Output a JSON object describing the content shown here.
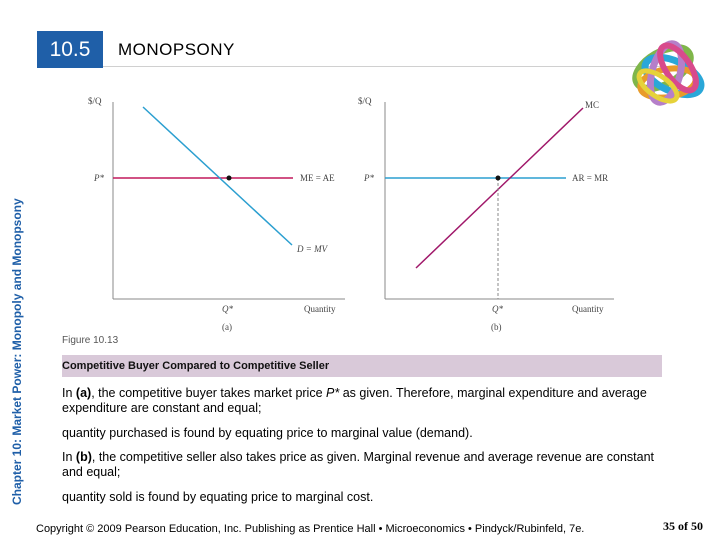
{
  "header": {
    "section_number": "10.5",
    "section_title": "MONOPSONY",
    "chapter_label": "Chapter 10:  Market Power: Monopoly and Monopsony"
  },
  "diagram": {
    "panel_a": {
      "y_label": "$/Q",
      "x_label": "Quantity",
      "price_label": "P*",
      "quantity_label": "Q*",
      "horizontal_line_label": "ME = AE",
      "demand_label": "D = MV",
      "panel_label": "(a)"
    },
    "panel_b": {
      "y_label": "$/Q",
      "x_label": "Quantity",
      "price_label": "P*",
      "quantity_label": "Q*",
      "horizontal_line_label": "AR = MR",
      "supply_label": "MC",
      "panel_label": "(b)"
    },
    "colors": {
      "price_line_a": "#c2185b",
      "demand_line": "#2b9fd0",
      "price_line_b": "#2b9fd0",
      "mc_line": "#a0186a",
      "axis": "#888888"
    }
  },
  "caption": {
    "figure_label": "Figure 10.13",
    "figure_title": "Competitive Buyer Compared to Competitive Seller"
  },
  "body": {
    "p1_prefix": "In ",
    "p1_bold": "(a)",
    "p1_mid": ", the competitive buyer takes market price ",
    "p1_italic": "P*",
    "p1_suffix": " as given. Therefore, marginal expenditure and average expenditure are constant and equal;",
    "p2": "quantity purchased is found by equating price to marginal value (demand).",
    "p3_prefix": "In ",
    "p3_bold": "(b)",
    "p3_suffix": ", the competitive seller also takes price as given. Marginal revenue and average revenue are constant and equal;",
    "p4": "quantity sold is found by equating price to marginal cost."
  },
  "footer": {
    "copyright": "Copyright © 2009 Pearson Education, Inc. Publishing as Prentice Hall  •  Microeconomics  •  Pindyck/Rubinfeld, 7e.",
    "page": "35 of 50"
  }
}
